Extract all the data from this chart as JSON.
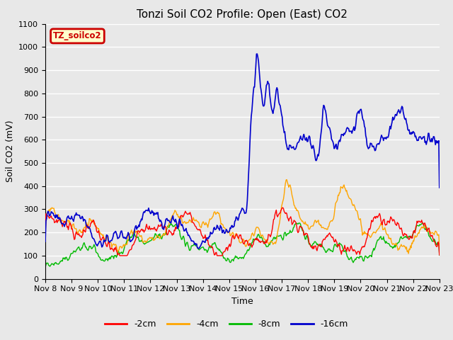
{
  "title": "Tonzi Soil CO2 Profile: Open (East) CO2",
  "xlabel": "Time",
  "ylabel": "Soil CO2 (mV)",
  "ylim": [
    0,
    1100
  ],
  "yticks": [
    0,
    100,
    200,
    300,
    400,
    500,
    600,
    700,
    800,
    900,
    1000,
    1100
  ],
  "xtick_labels": [
    "Nov 8",
    "Nov 9",
    "Nov 10",
    "Nov 11",
    "Nov 12",
    "Nov 13",
    "Nov 14",
    "Nov 15",
    "Nov 16",
    "Nov 17",
    "Nov 18",
    "Nov 19",
    "Nov 20",
    "Nov 21",
    "Nov 22",
    "Nov 23"
  ],
  "legend_box_label": "TZ_soilco2",
  "legend_box_color": "#cc0000",
  "legend_box_bg": "#ffffcc",
  "line_colors": [
    "#ff0000",
    "#ffa500",
    "#00bb00",
    "#0000cc"
  ],
  "line_labels": [
    "-2cm",
    "-4cm",
    "-8cm",
    "-16cm"
  ],
  "bg_color": "#e8e8e8",
  "grid_color": "#ffffff",
  "title_fontsize": 11,
  "axis_label_fontsize": 9,
  "tick_fontsize": 8
}
